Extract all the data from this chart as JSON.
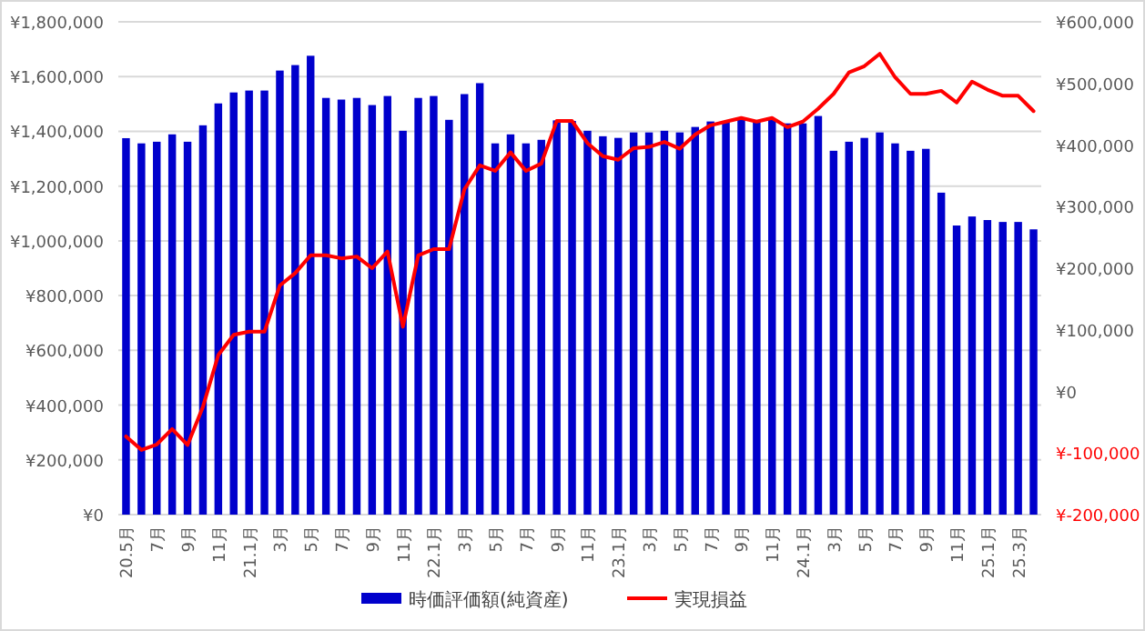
{
  "chart_data": {
    "type": "bar",
    "categories": [
      "20.5月",
      null,
      "7月",
      null,
      "9月",
      null,
      "11月",
      null,
      "21.1月",
      null,
      "3月",
      null,
      "5月",
      null,
      "7月",
      null,
      "9月",
      null,
      "11月",
      null,
      "22.1月",
      null,
      "3月",
      null,
      "5月",
      null,
      "7月",
      null,
      "9月",
      null,
      "11月",
      null,
      "23.1月",
      null,
      "3月",
      null,
      "5月",
      null,
      "7月",
      null,
      "9月",
      null,
      "11月",
      null,
      "24.1月",
      null,
      "3月",
      null,
      "5月",
      null,
      "7月",
      null,
      "9月",
      null,
      "11月",
      null,
      "25.1月",
      null,
      "25.3月",
      null
    ],
    "series": [
      {
        "name": "時価評価額(純資産)",
        "color": "#0000cc",
        "values": [
          1375000,
          1356000,
          1362000,
          1389000,
          1362000,
          1422000,
          1502000,
          1542000,
          1549000,
          1549000,
          1622000,
          1642000,
          1676000,
          1522000,
          1516000,
          1522000,
          1496000,
          1529000,
          1402000,
          1522000,
          1529000,
          1442000,
          1536000,
          1576000,
          1356000,
          1389000,
          1356000,
          1369000,
          1440000,
          1438000,
          1402000,
          1382000,
          1376000,
          1396000,
          1396000,
          1402000,
          1396000,
          1416000,
          1436000,
          1436000,
          1449000,
          1436000,
          1442000,
          1429000,
          1429000,
          1456000,
          1329000,
          1362000,
          1376000,
          1396000,
          1356000,
          1329000,
          1336000,
          1176000,
          1056000,
          1089000,
          1076000,
          1069000,
          1069000,
          1042000
        ]
      },
      {
        "name": "実現損益",
        "type": "line",
        "axis": "y2",
        "color": "#ff0000",
        "values": [
          -73000,
          -95000,
          -86000,
          -61000,
          -87000,
          -25000,
          59000,
          92000,
          97000,
          97000,
          172000,
          192000,
          221000,
          221000,
          216000,
          219000,
          200000,
          227000,
          105000,
          221000,
          231000,
          231000,
          328000,
          367000,
          358000,
          388000,
          358000,
          370000,
          439000,
          439000,
          403000,
          382000,
          376000,
          395000,
          397000,
          405000,
          394000,
          417000,
          432000,
          438000,
          444000,
          438000,
          444000,
          429000,
          438000,
          459000,
          483000,
          518000,
          528000,
          548000,
          510000,
          483000,
          483000,
          488000,
          469000,
          503000,
          490000,
          480000,
          480000,
          455000
        ]
      }
    ],
    "ylim": [
      0,
      1800000
    ],
    "yticks": [
      {
        "value": 0,
        "label": "¥0"
      },
      {
        "value": 200000,
        "label": "¥200,000"
      },
      {
        "value": 400000,
        "label": "¥400,000"
      },
      {
        "value": 600000,
        "label": "¥600,000"
      },
      {
        "value": 800000,
        "label": "¥800,000"
      },
      {
        "value": 1000000,
        "label": "¥1,000,000"
      },
      {
        "value": 1200000,
        "label": "¥1,200,000"
      },
      {
        "value": 1400000,
        "label": "¥1,400,000"
      },
      {
        "value": 1600000,
        "label": "¥1,600,000"
      },
      {
        "value": 1800000,
        "label": "¥1,800,000"
      }
    ],
    "y2lim": [
      -200000,
      600000
    ],
    "y2ticks": [
      {
        "value": -200000,
        "label": "¥-200,000"
      },
      {
        "value": -100000,
        "label": "¥-100,000"
      },
      {
        "value": 0,
        "label": "¥0"
      },
      {
        "value": 100000,
        "label": "¥100,000"
      },
      {
        "value": 200000,
        "label": "¥200,000"
      },
      {
        "value": 300000,
        "label": "¥300,000"
      },
      {
        "value": 400000,
        "label": "¥400,000"
      },
      {
        "value": 500000,
        "label": "¥500,000"
      },
      {
        "value": 600000,
        "label": "¥600,000"
      }
    ],
    "grid": "y",
    "legend": "bottom",
    "marker": "none",
    "line_style": "solid"
  }
}
